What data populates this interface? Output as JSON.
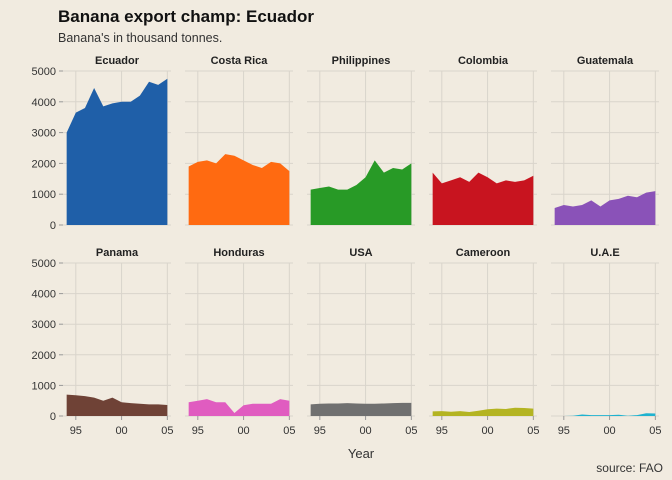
{
  "chart_data": {
    "type": "area",
    "title": "Banana export champ: Ecuador",
    "subtitle": "Banana's in thousand tonnes.",
    "xlabel": "Year",
    "ylabel": "",
    "caption": "source: FAO",
    "x": [
      1994,
      1995,
      1996,
      1997,
      1998,
      1999,
      2000,
      2001,
      2002,
      2003,
      2004,
      2005
    ],
    "x_ticks": [
      1995,
      2000,
      2005
    ],
    "x_tick_labels": [
      "95",
      "00",
      "05"
    ],
    "xlim": [
      1993.6,
      2005.4
    ],
    "y_ticks": [
      0,
      1000,
      2000,
      3000,
      4000,
      5000
    ],
    "y_tick_labels": [
      "0",
      "1000",
      "2000",
      "3000",
      "4000",
      "5000"
    ],
    "ylim": [
      0,
      5000
    ],
    "grid": true,
    "facet_layout": {
      "rows": 2,
      "cols": 5
    },
    "series": [
      {
        "name": "Ecuador",
        "color": "#1f5fa8",
        "values": [
          3000,
          3650,
          3800,
          4450,
          3850,
          3950,
          4000,
          4000,
          4200,
          4650,
          4550,
          4750
        ]
      },
      {
        "name": "Costa Rica",
        "color": "#ff6a11",
        "values": [
          1900,
          2050,
          2100,
          2000,
          2300,
          2250,
          2100,
          1950,
          1850,
          2050,
          2000,
          1750
        ]
      },
      {
        "name": "Philippines",
        "color": "#289a26",
        "values": [
          1150,
          1200,
          1250,
          1150,
          1150,
          1300,
          1550,
          2100,
          1700,
          1850,
          1800,
          2000
        ]
      },
      {
        "name": "Colombia",
        "color": "#c8141f",
        "values": [
          1700,
          1350,
          1450,
          1550,
          1400,
          1700,
          1550,
          1350,
          1450,
          1400,
          1450,
          1600
        ]
      },
      {
        "name": "Guatemala",
        "color": "#8a52b8",
        "values": [
          550,
          650,
          600,
          650,
          800,
          600,
          800,
          850,
          950,
          900,
          1050,
          1100
        ]
      },
      {
        "name": "Panama",
        "color": "#6f4236",
        "values": [
          700,
          680,
          650,
          600,
          500,
          600,
          450,
          420,
          400,
          380,
          380,
          360
        ]
      },
      {
        "name": "Honduras",
        "color": "#e05cc0",
        "values": [
          450,
          500,
          550,
          450,
          450,
          100,
          350,
          400,
          400,
          400,
          550,
          500
        ]
      },
      {
        "name": "USA",
        "color": "#707070",
        "values": [
          380,
          400,
          410,
          410,
          420,
          410,
          400,
          400,
          410,
          420,
          430,
          430
        ]
      },
      {
        "name": "Cameroon",
        "color": "#b4b422",
        "values": [
          150,
          160,
          140,
          160,
          130,
          170,
          220,
          240,
          230,
          270,
          260,
          240
        ]
      },
      {
        "name": "U.A.E",
        "color": "#1fb2cf",
        "values": [
          0,
          0,
          10,
          50,
          30,
          30,
          30,
          40,
          10,
          30,
          90,
          80
        ]
      }
    ]
  }
}
